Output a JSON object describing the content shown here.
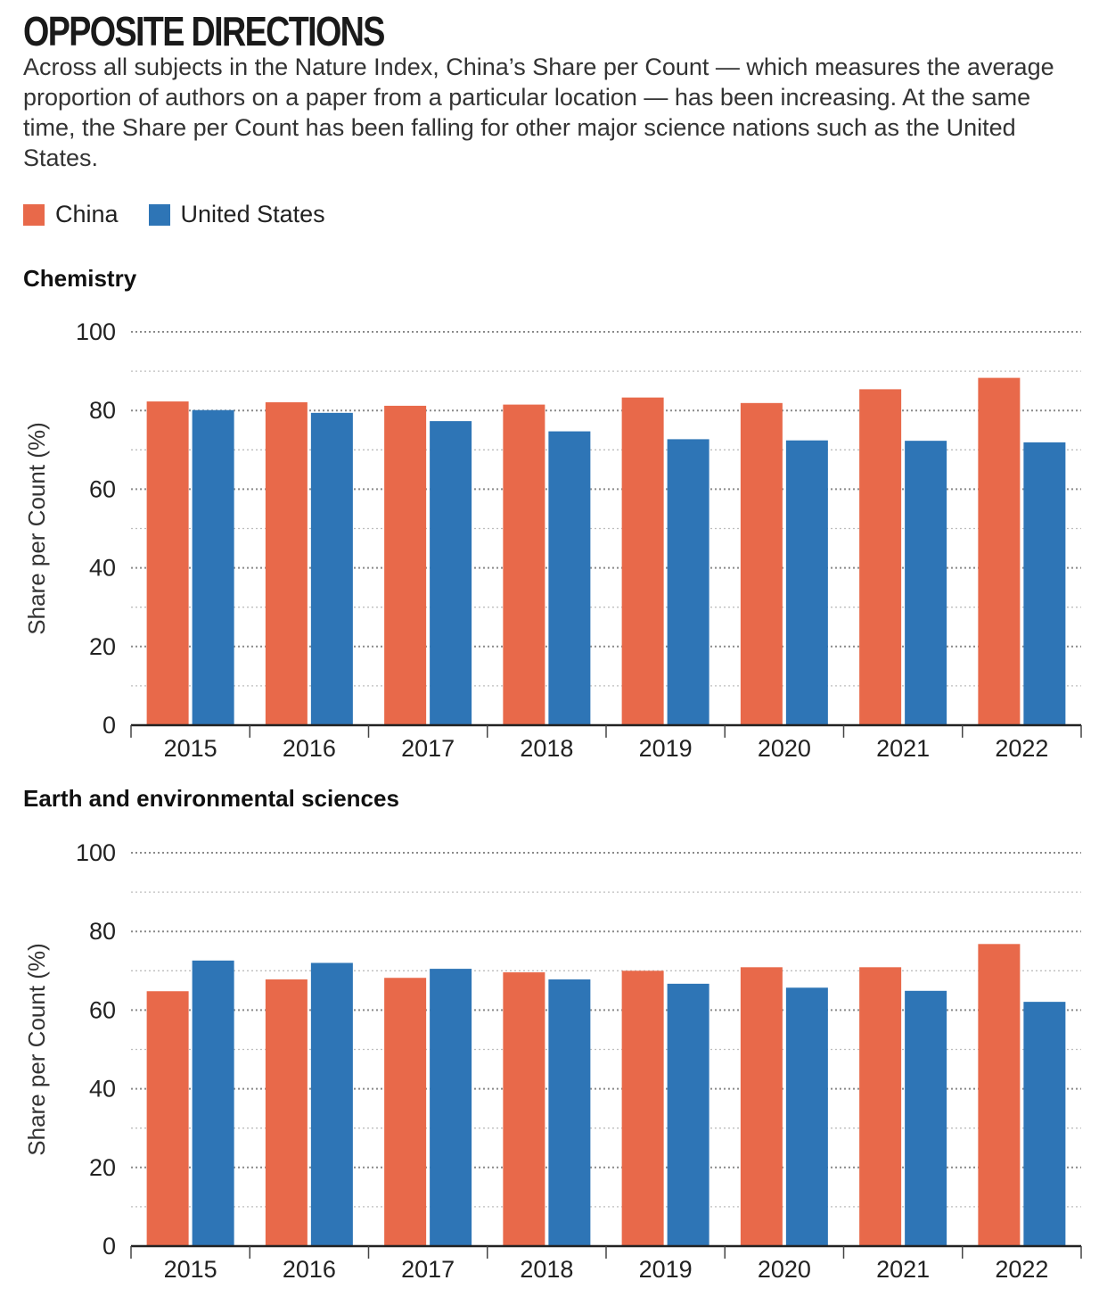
{
  "header": {
    "title": "OPPOSITE DIRECTIONS",
    "subtitle": "Across all subjects in the Nature Index, China’s Share per Count — which measures the average proportion of authors on a paper from a particular location — has been increasing. At the same time, the Share per Count has been falling for other major science nations such as the United States."
  },
  "legend": {
    "items": [
      {
        "label": "China",
        "color": "#e8694a"
      },
      {
        "label": "United States",
        "color": "#2e75b6"
      }
    ]
  },
  "chart_data": [
    {
      "type": "bar",
      "title": "Chemistry",
      "xlabel": "",
      "ylabel": "Share per Count (%)",
      "ylim": [
        0,
        100
      ],
      "yticks": [
        0,
        20,
        40,
        60,
        80,
        100
      ],
      "grid": true,
      "categories": [
        "2015",
        "2016",
        "2017",
        "2018",
        "2019",
        "2020",
        "2021",
        "2022"
      ],
      "series": [
        {
          "name": "China",
          "color": "#e8694a",
          "values": [
            82.3,
            82.1,
            81.2,
            81.5,
            83.3,
            81.9,
            85.4,
            88.3
          ]
        },
        {
          "name": "United States",
          "color": "#2e75b6",
          "values": [
            80.1,
            79.4,
            77.3,
            74.7,
            72.7,
            72.4,
            72.3,
            71.9
          ]
        }
      ]
    },
    {
      "type": "bar",
      "title": "Earth and environmental sciences",
      "xlabel": "",
      "ylabel": "Share per Count (%)",
      "ylim": [
        0,
        100
      ],
      "yticks": [
        0,
        20,
        40,
        60,
        80,
        100
      ],
      "grid": true,
      "categories": [
        "2015",
        "2016",
        "2017",
        "2018",
        "2019",
        "2020",
        "2021",
        "2022"
      ],
      "series": [
        {
          "name": "China",
          "color": "#e8694a",
          "values": [
            64.8,
            67.8,
            68.2,
            69.6,
            70.0,
            70.9,
            70.9,
            76.8
          ]
        },
        {
          "name": "United States",
          "color": "#2e75b6",
          "values": [
            72.6,
            72.0,
            70.5,
            67.8,
            66.7,
            65.7,
            64.9,
            62.1
          ]
        }
      ]
    }
  ]
}
